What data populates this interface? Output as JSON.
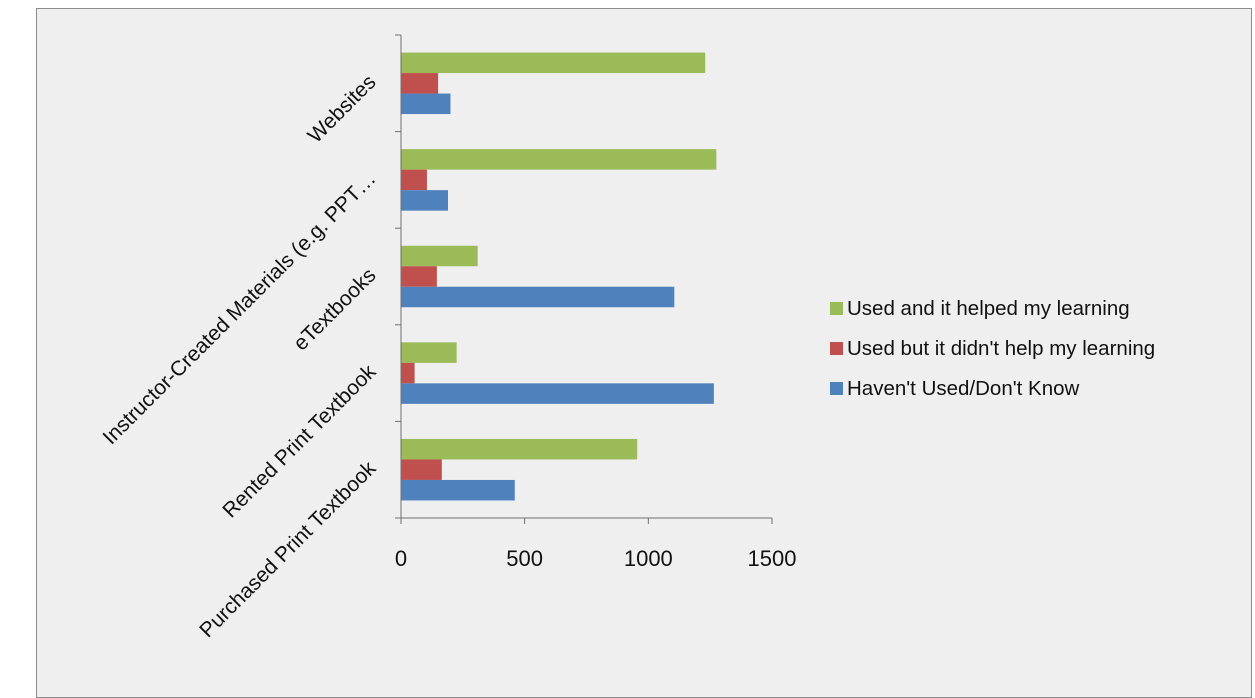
{
  "chart_data": {
    "type": "bar",
    "orientation": "horizontal",
    "title": "",
    "categories": [
      "Websites",
      "Instructor-Created Materials (e.g. PPT…",
      "eTextbooks",
      "Rented Print Textbook",
      "Purchased Print Textbook"
    ],
    "series": [
      {
        "name": "Used and it helped my learning",
        "color": "#9bbb59",
        "values": [
          1230,
          1275,
          310,
          225,
          955
        ]
      },
      {
        "name": "Used but it didn't help my learning",
        "color": "#c0504d",
        "values": [
          150,
          105,
          145,
          55,
          165
        ]
      },
      {
        "name": "Haven't Used/Don't Know",
        "color": "#4f81bd",
        "values": [
          200,
          190,
          1105,
          1265,
          460
        ]
      }
    ],
    "xlim": [
      0,
      1500
    ],
    "xticks": [
      "0",
      "500",
      "1000",
      "1500"
    ],
    "grid": false,
    "legend_position": "right"
  }
}
